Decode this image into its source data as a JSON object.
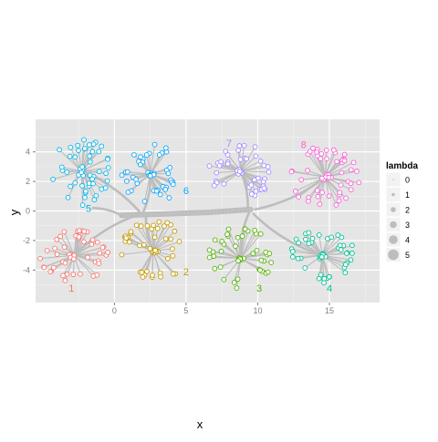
{
  "chart_data": {
    "type": "scatter",
    "title": "",
    "xlabel": "x",
    "ylabel": "y",
    "xlim": [
      -5.5,
      18.5
    ],
    "ylim": [
      -6.2,
      6.2
    ],
    "xticks": [
      0,
      5,
      10,
      15
    ],
    "yticks": [
      -4,
      -2,
      0,
      2,
      4
    ],
    "grid": true,
    "legend": {
      "title": "lambda",
      "placement": "right",
      "entries": [
        {
          "label": "0",
          "value": 0
        },
        {
          "label": "1",
          "value": 1
        },
        {
          "label": "2",
          "value": 2
        },
        {
          "label": "3",
          "value": 3
        },
        {
          "label": "4",
          "value": 4
        },
        {
          "label": "5",
          "value": 5
        }
      ]
    },
    "backbone": {
      "trunk": [
        [
          0.5,
          -0.3
        ],
        [
          3.5,
          -0.2
        ],
        [
          6.5,
          -0.1
        ],
        [
          9.5,
          0.1
        ]
      ],
      "links": [
        {
          "from": [
            -2.3,
            2.7
          ],
          "to": [
            1.8,
            -0.1
          ]
        },
        {
          "from": [
            2.5,
            2.5
          ],
          "to": [
            2.0,
            -0.1
          ]
        },
        {
          "from": [
            -2.8,
            -3.0
          ],
          "to": [
            1.8,
            -0.2
          ]
        },
        {
          "from": [
            2.7,
            -2.7
          ],
          "to": [
            2.2,
            -0.3
          ]
        },
        {
          "from": [
            8.8,
            2.7
          ],
          "to": [
            9.3,
            0.0
          ]
        },
        {
          "from": [
            14.7,
            2.3
          ],
          "to": [
            9.8,
            0.1
          ]
        },
        {
          "from": [
            8.8,
            -3.2
          ],
          "to": [
            9.4,
            -0.1
          ]
        },
        {
          "from": [
            14.5,
            -3.0
          ],
          "to": [
            9.7,
            -0.2
          ]
        },
        {
          "from": [
            -1.5,
            0.2
          ],
          "to": [
            0.5,
            -0.3
          ]
        }
      ]
    },
    "series": [
      {
        "name": "1",
        "color": "#F8766D",
        "center": [
          -2.8,
          -3.0
        ],
        "spread": [
          1.3,
          0.8
        ],
        "count": 45,
        "label_pos": [
          -3.0,
          -5.2
        ]
      },
      {
        "name": "2",
        "color": "#C49A00",
        "center": [
          2.7,
          -2.7
        ],
        "spread": [
          1.2,
          0.9
        ],
        "count": 40,
        "label_pos": [
          5.0,
          -4.1
        ]
      },
      {
        "name": "3",
        "color": "#53B400",
        "center": [
          8.8,
          -3.2
        ],
        "spread": [
          1.2,
          0.9
        ],
        "count": 40,
        "label_pos": [
          10.1,
          -5.2
        ]
      },
      {
        "name": "4",
        "color": "#00C094",
        "center": [
          14.5,
          -3.0
        ],
        "spread": [
          1.2,
          0.8
        ],
        "count": 40,
        "label_pos": [
          15.0,
          -5.2
        ]
      },
      {
        "name": "5",
        "color": "#00B6EB",
        "center": [
          -2.3,
          2.7
        ],
        "spread": [
          1.1,
          1.0
        ],
        "count": 45,
        "label_pos": [
          -1.8,
          0.2
        ]
      },
      {
        "name": "6",
        "color": "#06A4FF",
        "center": [
          2.5,
          2.5
        ],
        "spread": [
          1.1,
          0.9
        ],
        "count": 40,
        "label_pos": [
          5.0,
          1.4
        ]
      },
      {
        "name": "7",
        "color": "#A58AFF",
        "center": [
          8.8,
          2.7
        ],
        "spread": [
          1.2,
          0.8
        ],
        "count": 40,
        "label_pos": [
          8.0,
          4.6
        ]
      },
      {
        "name": "8",
        "color": "#FB61D7",
        "center": [
          14.7,
          2.3
        ],
        "spread": [
          1.3,
          0.9
        ],
        "count": 45,
        "label_pos": [
          13.2,
          4.5
        ]
      }
    ]
  }
}
